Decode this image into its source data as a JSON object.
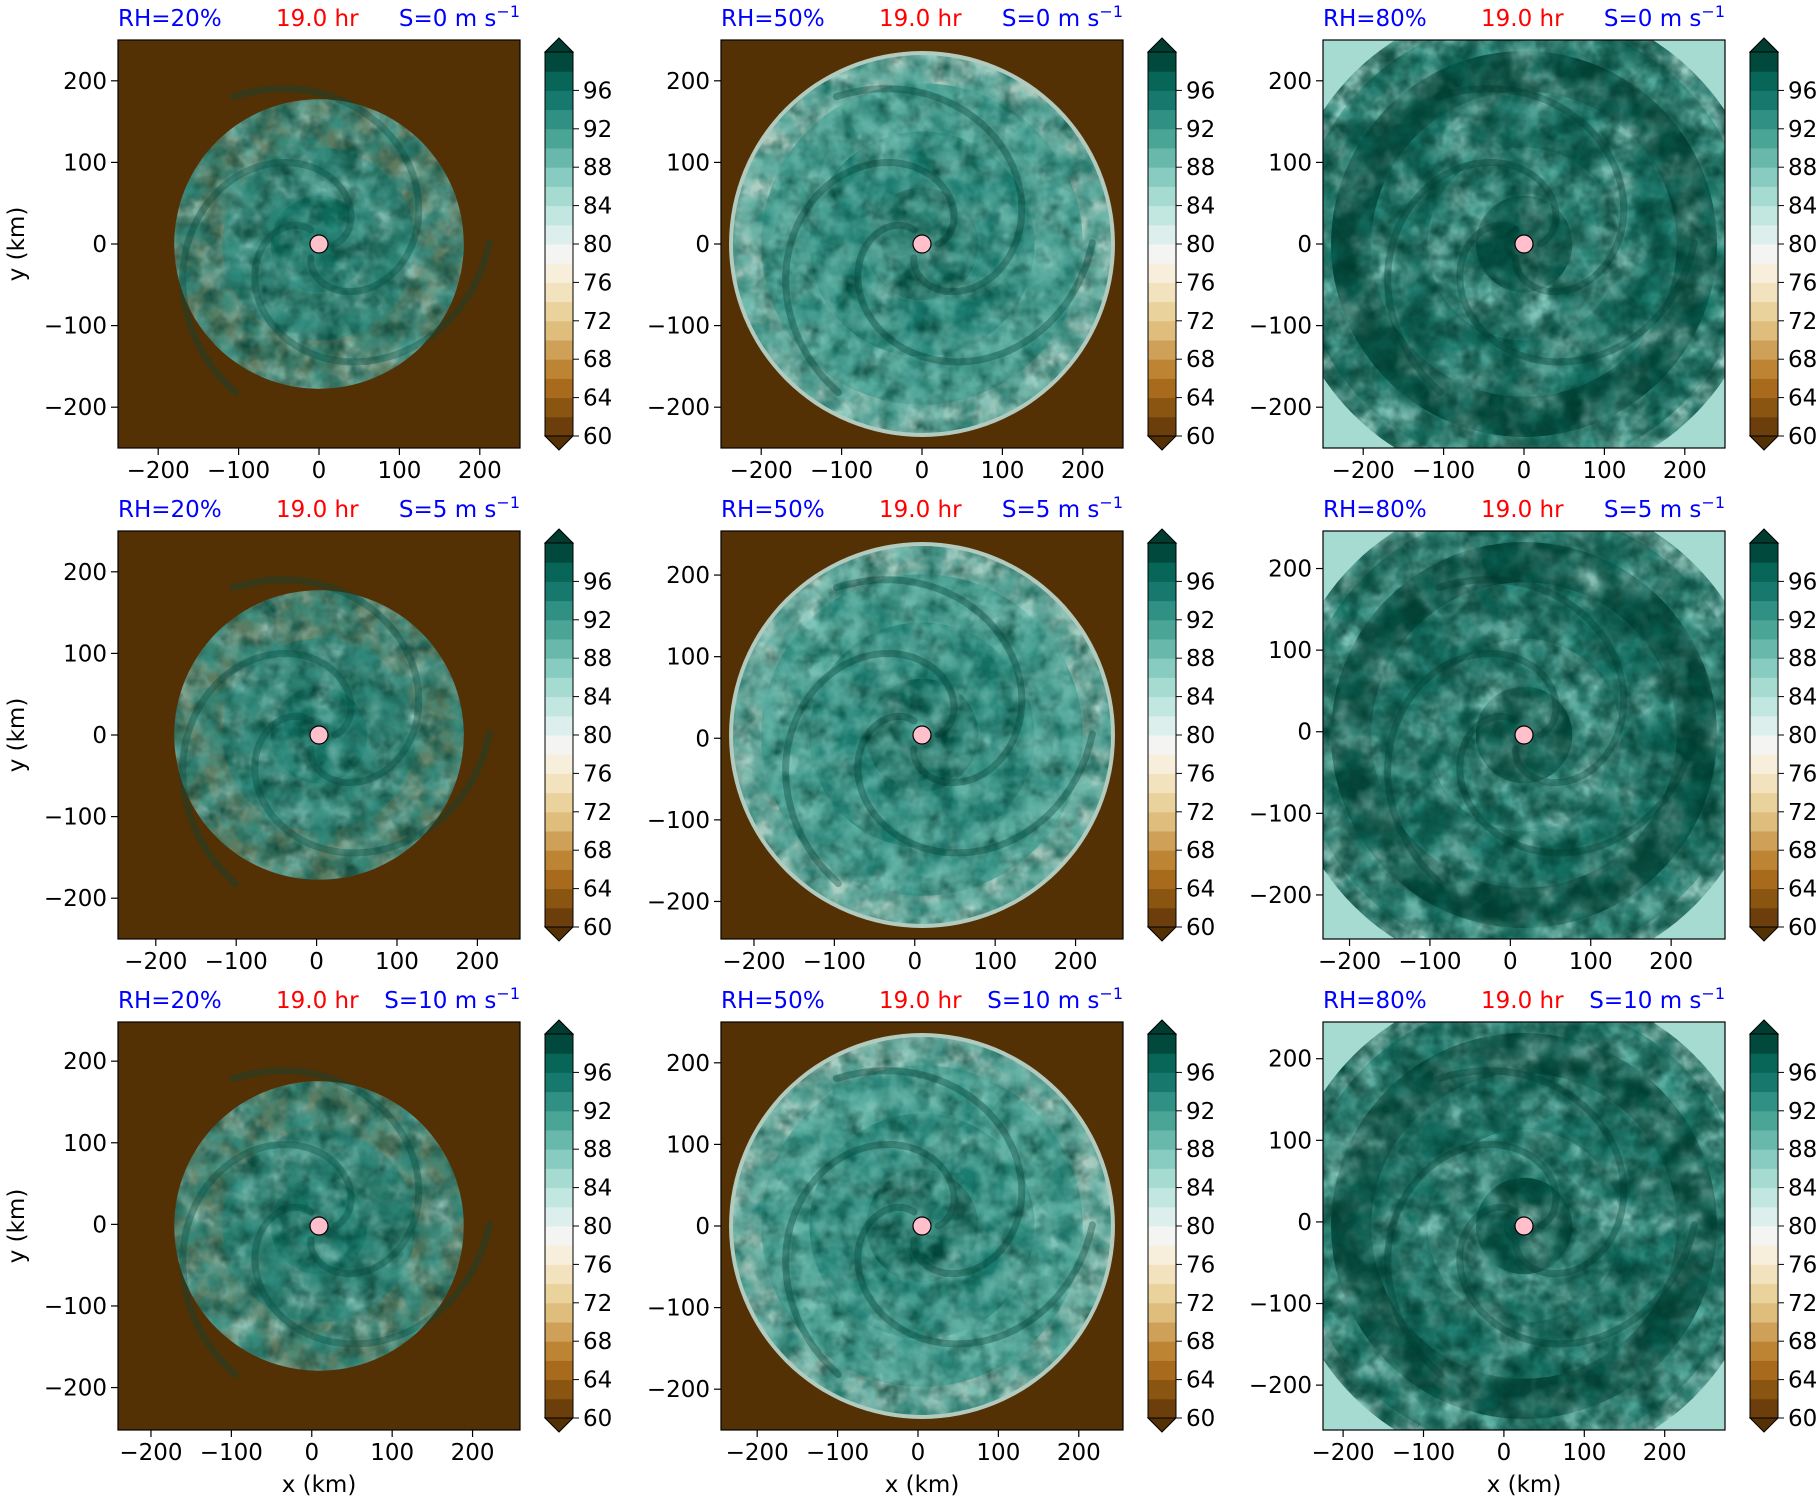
{
  "figure": {
    "time_label": "19.0 hr",
    "shear_unit_suffix": " m s",
    "shear_exponent": "−1",
    "rh_color": "#0000ff",
    "time_color": "#ff0000",
    "shear_color": "#0000ff",
    "xlabel": "x (km)",
    "ylabel": "y (km)"
  },
  "chart_data": [
    {
      "type": "heatmap",
      "rh": "RH=20%",
      "time": "19.0 hr",
      "shear": "S=0",
      "center_x": 0,
      "center_y": 0,
      "xlim": [
        -250,
        250
      ],
      "ylim": [
        -250,
        250
      ],
      "xticks": [
        -200,
        -100,
        0,
        100,
        200
      ],
      "yticks": [
        -200,
        -100,
        0,
        100,
        200
      ],
      "show_ylabel": true,
      "show_xlabel": false
    },
    {
      "type": "heatmap",
      "rh": "RH=50%",
      "time": "19.0 hr",
      "shear": "S=0",
      "center_x": 0,
      "center_y": 0,
      "xlim": [
        -250,
        250
      ],
      "ylim": [
        -250,
        250
      ],
      "xticks": [
        -200,
        -100,
        0,
        100,
        200
      ],
      "yticks": [
        -200,
        -100,
        0,
        100,
        200
      ],
      "show_ylabel": false,
      "show_xlabel": false
    },
    {
      "type": "heatmap",
      "rh": "RH=80%",
      "time": "19.0 hr",
      "shear": "S=0",
      "center_x": 0,
      "center_y": 0,
      "xlim": [
        -250,
        250
      ],
      "ylim": [
        -250,
        250
      ],
      "xticks": [
        -200,
        -100,
        0,
        100,
        200
      ],
      "yticks": [
        -200,
        -100,
        0,
        100,
        200
      ],
      "show_ylabel": false,
      "show_xlabel": false
    },
    {
      "type": "heatmap",
      "rh": "RH=20%",
      "time": "19.0 hr",
      "shear": "S=5",
      "center_x": 3,
      "center_y": 0,
      "xlim": [
        -247,
        253
      ],
      "ylim": [
        -250,
        250
      ],
      "xticks": [
        -200,
        -100,
        0,
        100,
        200
      ],
      "yticks": [
        -200,
        -100,
        0,
        100,
        200
      ],
      "show_ylabel": true,
      "show_xlabel": false
    },
    {
      "type": "heatmap",
      "rh": "RH=50%",
      "time": "19.0 hr",
      "shear": "S=5",
      "center_x": 9,
      "center_y": 4,
      "xlim": [
        -241,
        259
      ],
      "ylim": [
        -246,
        254
      ],
      "xticks": [
        -200,
        -100,
        0,
        100,
        200
      ],
      "yticks": [
        -200,
        -100,
        0,
        100,
        200
      ],
      "show_ylabel": false,
      "show_xlabel": false
    },
    {
      "type": "heatmap",
      "rh": "RH=80%",
      "time": "19.0 hr",
      "shear": "S=5",
      "center_x": 17,
      "center_y": -4,
      "xlim": [
        -233,
        267
      ],
      "ylim": [
        -254,
        246
      ],
      "xticks": [
        -200,
        -100,
        0,
        100,
        200
      ],
      "yticks": [
        -200,
        -100,
        0,
        100,
        200
      ],
      "show_ylabel": false,
      "show_xlabel": false
    },
    {
      "type": "heatmap",
      "rh": "RH=20%",
      "time": "19.0 hr",
      "shear": "S=10",
      "center_x": 9,
      "center_y": -2,
      "xlim": [
        -241,
        259
      ],
      "ylim": [
        -252,
        248
      ],
      "xticks": [
        -200,
        -100,
        0,
        100,
        200
      ],
      "yticks": [
        -200,
        -100,
        0,
        100,
        200
      ],
      "show_ylabel": true,
      "show_xlabel": true
    },
    {
      "type": "heatmap",
      "rh": "RH=50%",
      "time": "19.0 hr",
      "shear": "S=10",
      "center_x": 5,
      "center_y": 0,
      "xlim": [
        -245,
        255
      ],
      "ylim": [
        -250,
        250
      ],
      "xticks": [
        -200,
        -100,
        0,
        100,
        200
      ],
      "yticks": [
        -200,
        -100,
        0,
        100,
        200
      ],
      "show_ylabel": false,
      "show_xlabel": true
    },
    {
      "type": "heatmap",
      "rh": "RH=80%",
      "time": "19.0 hr",
      "shear": "S=10",
      "center_x": 25,
      "center_y": -5,
      "xlim": [
        -225,
        275
      ],
      "ylim": [
        -255,
        245
      ],
      "xticks": [
        -200,
        -100,
        0,
        100,
        200
      ],
      "yticks": [
        -200,
        -100,
        0,
        100,
        200
      ],
      "show_ylabel": false,
      "show_xlabel": true
    }
  ],
  "colorbar": {
    "levels": [
      60,
      62,
      64,
      66,
      68,
      70,
      72,
      74,
      76,
      78,
      80,
      82,
      84,
      86,
      88,
      90,
      92,
      94,
      96,
      98,
      100
    ],
    "ticks": [
      60,
      64,
      68,
      72,
      76,
      80,
      84,
      88,
      92,
      96
    ],
    "colors": [
      "#6b3e0b",
      "#8a5510",
      "#a86a1c",
      "#bd8433",
      "#cfa057",
      "#dfbe7d",
      "#ead29d",
      "#f2e2bd",
      "#f7efdc",
      "#f4f4f2",
      "#dcefec",
      "#c2e6e0",
      "#a6dbd2",
      "#88ccc1",
      "#68b9ac",
      "#4ba597",
      "#2f9083",
      "#17796d",
      "#086658",
      "#01493c"
    ],
    "extend_low": "#543005",
    "extend_high": "#003c30"
  }
}
